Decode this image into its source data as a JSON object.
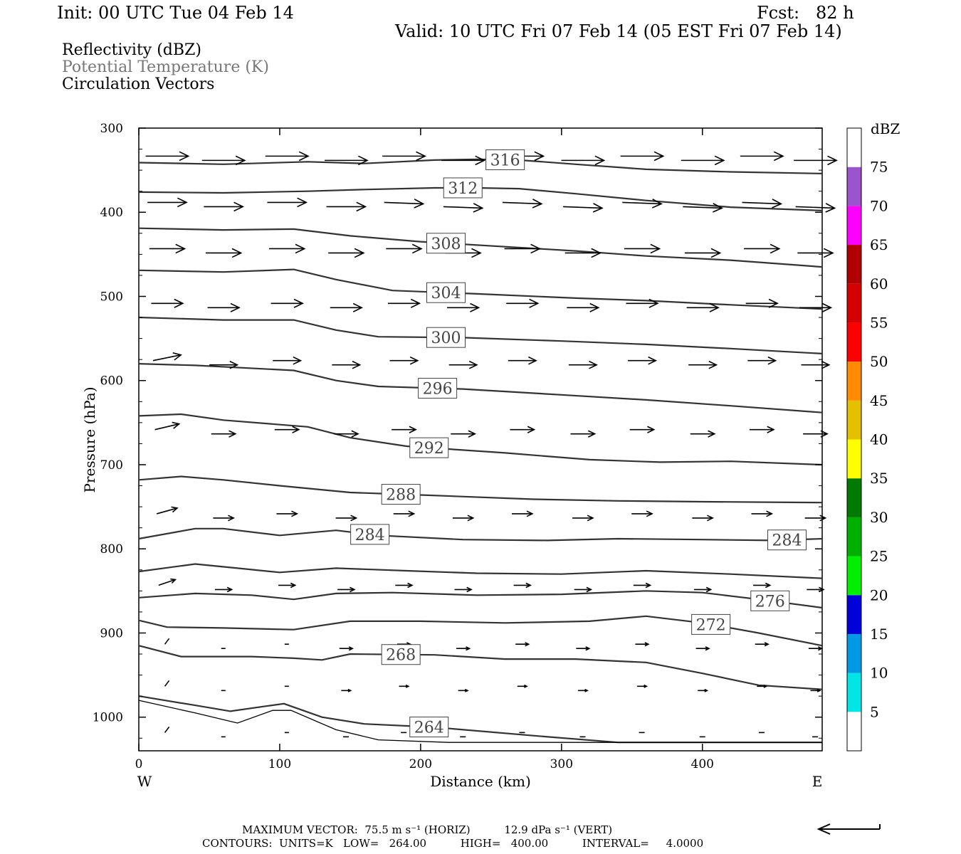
{
  "header": {
    "init": "Init: 00 UTC Tue 04 Feb 14",
    "fcst": "Fcst:   82 h",
    "valid": "Valid: 10 UTC Fri 07 Feb 14 (05 EST Fri 07 Feb 14)"
  },
  "fields": {
    "reflectivity": "Reflectivity (dBZ)",
    "theta": "Potential Temperature (K)",
    "vectors": "Circulation Vectors"
  },
  "chart_data": {
    "type": "contour",
    "xlabel": "Distance (km)",
    "ylabel": "Pressure (hPa)",
    "xlim": [
      0,
      485
    ],
    "ylim": [
      1040,
      300
    ],
    "x_ticks": [
      0,
      100,
      200,
      300,
      400
    ],
    "y_ticks": [
      300,
      400,
      500,
      600,
      700,
      800,
      900,
      1000
    ],
    "x_end_labels": {
      "left": "W",
      "right": "E"
    },
    "theta_contours": [
      {
        "value": 316,
        "label": "316",
        "label_x": 260,
        "points": [
          [
            0,
            341
          ],
          [
            60,
            343
          ],
          [
            120,
            340
          ],
          [
            160,
            342
          ],
          [
            210,
            338
          ],
          [
            240,
            337
          ],
          [
            270,
            338
          ],
          [
            310,
            343
          ],
          [
            360,
            349
          ],
          [
            420,
            352
          ],
          [
            485,
            354
          ]
        ]
      },
      {
        "value": 312,
        "label": "312",
        "label_x": 230,
        "points": [
          [
            0,
            376
          ],
          [
            60,
            377
          ],
          [
            120,
            375
          ],
          [
            160,
            373
          ],
          [
            210,
            371
          ],
          [
            240,
            371
          ],
          [
            270,
            372
          ],
          [
            310,
            378
          ],
          [
            360,
            386
          ],
          [
            420,
            394
          ],
          [
            485,
            398
          ]
        ]
      },
      {
        "value": 308,
        "label": "308",
        "label_x": 218,
        "points": [
          [
            0,
            419
          ],
          [
            60,
            421
          ],
          [
            110,
            420
          ],
          [
            150,
            428
          ],
          [
            200,
            435
          ],
          [
            260,
            441
          ],
          [
            310,
            446
          ],
          [
            360,
            452
          ],
          [
            420,
            457
          ],
          [
            485,
            465
          ]
        ]
      },
      {
        "value": 304,
        "label": "304",
        "label_x": 218,
        "points": [
          [
            0,
            469
          ],
          [
            60,
            471
          ],
          [
            110,
            468
          ],
          [
            140,
            480
          ],
          [
            180,
            493
          ],
          [
            240,
            497
          ],
          [
            310,
            502
          ],
          [
            360,
            505
          ],
          [
            420,
            510
          ],
          [
            485,
            515
          ]
        ]
      },
      {
        "value": 300,
        "label": "300",
        "label_x": 218,
        "points": [
          [
            0,
            525
          ],
          [
            60,
            528
          ],
          [
            110,
            528
          ],
          [
            140,
            540
          ],
          [
            170,
            548
          ],
          [
            230,
            549
          ],
          [
            300,
            553
          ],
          [
            360,
            557
          ],
          [
            420,
            562
          ],
          [
            485,
            568
          ]
        ]
      },
      {
        "value": 296,
        "label": "296",
        "label_x": 212,
        "points": [
          [
            0,
            580
          ],
          [
            40,
            582
          ],
          [
            110,
            588
          ],
          [
            140,
            600
          ],
          [
            170,
            607
          ],
          [
            230,
            610
          ],
          [
            300,
            617
          ],
          [
            360,
            623
          ],
          [
            420,
            630
          ],
          [
            485,
            638
          ]
        ]
      },
      {
        "value": 292,
        "label": "292",
        "label_x": 206,
        "points": [
          [
            0,
            642
          ],
          [
            30,
            640
          ],
          [
            60,
            647
          ],
          [
            120,
            655
          ],
          [
            150,
            668
          ],
          [
            190,
            678
          ],
          [
            260,
            686
          ],
          [
            320,
            694
          ],
          [
            370,
            697
          ],
          [
            420,
            696
          ],
          [
            485,
            700
          ]
        ]
      },
      {
        "value": 288,
        "label": "288",
        "label_x": 186,
        "points": [
          [
            0,
            718
          ],
          [
            30,
            714
          ],
          [
            60,
            718
          ],
          [
            100,
            725
          ],
          [
            150,
            733
          ],
          [
            200,
            736
          ],
          [
            280,
            741
          ],
          [
            340,
            743
          ],
          [
            400,
            744
          ],
          [
            485,
            745
          ]
        ]
      },
      {
        "value": 284,
        "label": "284",
        "label_x": 164,
        "points": [
          [
            0,
            788
          ],
          [
            40,
            776
          ],
          [
            60,
            776
          ],
          [
            100,
            784
          ],
          [
            140,
            778
          ],
          [
            170,
            784
          ],
          [
            230,
            789
          ],
          [
            290,
            790
          ],
          [
            340,
            788
          ],
          [
            400,
            789
          ],
          [
            450,
            790
          ],
          [
            485,
            788
          ]
        ]
      },
      {
        "value": 284,
        "label": "284",
        "label_x": 460,
        "points": []
      },
      {
        "value": 280,
        "label": "",
        "label_x": 0,
        "points": [
          [
            0,
            827
          ],
          [
            40,
            818
          ],
          [
            70,
            823
          ],
          [
            100,
            828
          ],
          [
            140,
            823
          ],
          [
            190,
            826
          ],
          [
            240,
            829
          ],
          [
            300,
            830
          ],
          [
            360,
            826
          ],
          [
            420,
            830
          ],
          [
            485,
            835
          ]
        ]
      },
      {
        "value": 276,
        "label": "276",
        "label_x": 448,
        "points": [
          [
            0,
            858
          ],
          [
            40,
            853
          ],
          [
            80,
            855
          ],
          [
            110,
            860
          ],
          [
            140,
            853
          ],
          [
            180,
            852
          ],
          [
            240,
            855
          ],
          [
            300,
            854
          ],
          [
            360,
            850
          ],
          [
            400,
            852
          ],
          [
            440,
            860
          ],
          [
            485,
            870
          ]
        ]
      },
      {
        "value": 272,
        "label": "272",
        "label_x": 406,
        "points": [
          [
            0,
            885
          ],
          [
            20,
            893
          ],
          [
            60,
            894
          ],
          [
            110,
            896
          ],
          [
            150,
            886
          ],
          [
            200,
            886
          ],
          [
            260,
            888
          ],
          [
            320,
            886
          ],
          [
            360,
            880
          ],
          [
            400,
            888
          ],
          [
            440,
            900
          ],
          [
            485,
            915
          ]
        ]
      },
      {
        "value": 268,
        "label": "268",
        "label_x": 186,
        "points": [
          [
            0,
            915
          ],
          [
            30,
            928
          ],
          [
            80,
            928
          ],
          [
            110,
            930
          ],
          [
            130,
            932
          ],
          [
            150,
            925
          ],
          [
            210,
            926
          ],
          [
            260,
            931
          ],
          [
            310,
            931
          ],
          [
            360,
            935
          ],
          [
            400,
            948
          ],
          [
            440,
            962
          ],
          [
            485,
            967
          ]
        ]
      },
      {
        "value": 264,
        "label": "264",
        "label_x": 206,
        "points": [
          [
            0,
            975
          ],
          [
            40,
            986
          ],
          [
            65,
            993
          ],
          [
            90,
            987
          ],
          [
            103,
            984
          ],
          [
            130,
            1000
          ],
          [
            160,
            1008
          ],
          [
            210,
            1012
          ],
          [
            280,
            1022
          ],
          [
            340,
            1030
          ],
          [
            400,
            1030
          ],
          [
            485,
            1030
          ]
        ]
      },
      {
        "value": 264,
        "label": "",
        "label_x": 0,
        "points": [
          [
            0,
            980
          ],
          [
            40,
            995
          ],
          [
            70,
            1007
          ],
          [
            95,
            992
          ],
          [
            108,
            992
          ],
          [
            140,
            1015
          ],
          [
            170,
            1027
          ],
          [
            220,
            1030
          ],
          [
            300,
            1030
          ],
          [
            400,
            1030
          ],
          [
            485,
            1030
          ]
        ]
      }
    ],
    "circulation_vectors": {
      "rows_hpa": [
        335,
        390,
        445,
        510,
        578,
        660,
        760,
        845,
        915,
        965,
        1020
      ],
      "columns_km": [
        20,
        60,
        105,
        147,
        188,
        230,
        272,
        315,
        357,
        400,
        442,
        480
      ],
      "max_horiz": "75.5 m s",
      "max_vert": "12.9 dPa s"
    },
    "colorbar": {
      "title": "dBZ",
      "levels": [
        5,
        10,
        15,
        20,
        25,
        30,
        35,
        40,
        45,
        50,
        55,
        60,
        65,
        70,
        75
      ],
      "colors": [
        "#ffffff",
        "#00e5e5",
        "#0099e5",
        "#0000d8",
        "#00ee00",
        "#00b000",
        "#007a00",
        "#ffff00",
        "#e5bf00",
        "#ff8c00",
        "#ff0000",
        "#d50000",
        "#b00000",
        "#ff00ff",
        "#9a55cc",
        "#ffffff"
      ]
    }
  },
  "footer": {
    "max_vector": "MAXIMUM VECTOR:  75.5 m s⁻¹ (HORIZ)          12.9 dPa s⁻¹ (VERT)",
    "contours": "CONTOURS:  UNITS=K   LOW=   264.00          HIGH=   400.00          INTERVAL=     4.0000"
  }
}
